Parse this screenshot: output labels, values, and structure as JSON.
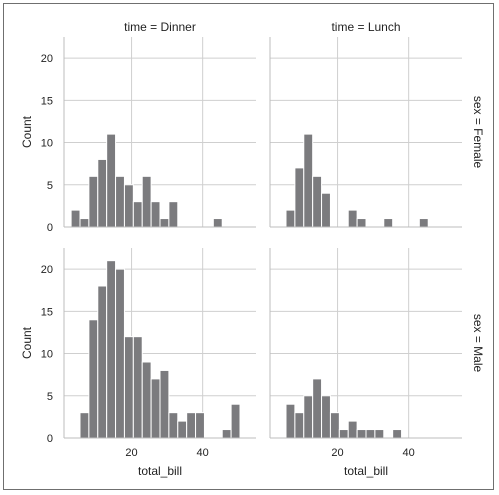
{
  "chart_data": {
    "type": "bar",
    "kind": "histogram facet grid",
    "x_variable": "total_bill",
    "y_variable": "Count",
    "xlabel": "total_bill",
    "ylabel": "Count",
    "x_ticks": [
      20,
      40
    ],
    "bin_width": 2.5,
    "bar_color": "#7b7b7e",
    "grid": true,
    "facets": [
      {
        "col_title": "time = Dinner",
        "row_title": "",
        "ylim": [
          0,
          22.5
        ],
        "y_ticks": [
          0,
          5,
          10,
          15,
          20
        ],
        "bins": [
          {
            "x0": 3.0,
            "x1": 5.5,
            "count": 2
          },
          {
            "x0": 5.5,
            "x1": 8.0,
            "count": 1
          },
          {
            "x0": 8.0,
            "x1": 10.5,
            "count": 6
          },
          {
            "x0": 10.5,
            "x1": 13.0,
            "count": 8
          },
          {
            "x0": 13.0,
            "x1": 15.5,
            "count": 11
          },
          {
            "x0": 15.5,
            "x1": 18.0,
            "count": 6
          },
          {
            "x0": 18.0,
            "x1": 20.5,
            "count": 5
          },
          {
            "x0": 20.5,
            "x1": 23.0,
            "count": 3
          },
          {
            "x0": 23.0,
            "x1": 25.5,
            "count": 6
          },
          {
            "x0": 25.5,
            "x1": 28.0,
            "count": 3
          },
          {
            "x0": 28.0,
            "x1": 30.5,
            "count": 1
          },
          {
            "x0": 30.5,
            "x1": 33.0,
            "count": 3
          },
          {
            "x0": 43.0,
            "x1": 45.5,
            "count": 1
          }
        ]
      },
      {
        "col_title": "time = Lunch",
        "row_title": "sex = Female",
        "ylim": [
          0,
          22.5
        ],
        "y_ticks": [
          0,
          5,
          10,
          15,
          20
        ],
        "bins": [
          {
            "x0": 5.5,
            "x1": 8.0,
            "count": 2
          },
          {
            "x0": 8.0,
            "x1": 10.5,
            "count": 7
          },
          {
            "x0": 10.5,
            "x1": 13.0,
            "count": 11
          },
          {
            "x0": 13.0,
            "x1": 15.5,
            "count": 6
          },
          {
            "x0": 15.5,
            "x1": 18.0,
            "count": 4
          },
          {
            "x0": 23.0,
            "x1": 25.5,
            "count": 2
          },
          {
            "x0": 25.5,
            "x1": 28.0,
            "count": 1
          },
          {
            "x0": 33.0,
            "x1": 35.5,
            "count": 1
          },
          {
            "x0": 43.0,
            "x1": 45.5,
            "count": 1
          }
        ]
      },
      {
        "col_title": "",
        "row_title": "",
        "ylim": [
          0,
          22.5
        ],
        "y_ticks": [
          0,
          5,
          10,
          15,
          20
        ],
        "bins": [
          {
            "x0": 5.5,
            "x1": 8.0,
            "count": 3
          },
          {
            "x0": 8.0,
            "x1": 10.5,
            "count": 14
          },
          {
            "x0": 10.5,
            "x1": 13.0,
            "count": 18
          },
          {
            "x0": 13.0,
            "x1": 15.5,
            "count": 21
          },
          {
            "x0": 15.5,
            "x1": 18.0,
            "count": 20
          },
          {
            "x0": 18.0,
            "x1": 20.5,
            "count": 12
          },
          {
            "x0": 20.5,
            "x1": 23.0,
            "count": 12
          },
          {
            "x0": 23.0,
            "x1": 25.5,
            "count": 9
          },
          {
            "x0": 25.5,
            "x1": 28.0,
            "count": 7
          },
          {
            "x0": 28.0,
            "x1": 30.5,
            "count": 8
          },
          {
            "x0": 30.5,
            "x1": 33.0,
            "count": 3
          },
          {
            "x0": 33.0,
            "x1": 35.5,
            "count": 2
          },
          {
            "x0": 35.5,
            "x1": 38.0,
            "count": 3
          },
          {
            "x0": 38.0,
            "x1": 40.5,
            "count": 3
          },
          {
            "x0": 45.5,
            "x1": 48.0,
            "count": 1
          },
          {
            "x0": 48.0,
            "x1": 50.5,
            "count": 4
          }
        ]
      },
      {
        "col_title": "",
        "row_title": "sex = Male",
        "ylim": [
          0,
          22.5
        ],
        "y_ticks": [
          0,
          5,
          10,
          15,
          20
        ],
        "bins": [
          {
            "x0": 5.5,
            "x1": 8.0,
            "count": 4
          },
          {
            "x0": 8.0,
            "x1": 10.5,
            "count": 3
          },
          {
            "x0": 10.5,
            "x1": 13.0,
            "count": 5
          },
          {
            "x0": 13.0,
            "x1": 15.5,
            "count": 7
          },
          {
            "x0": 15.5,
            "x1": 18.0,
            "count": 5
          },
          {
            "x0": 18.0,
            "x1": 20.5,
            "count": 3
          },
          {
            "x0": 20.5,
            "x1": 23.0,
            "count": 1
          },
          {
            "x0": 23.0,
            "x1": 25.5,
            "count": 2
          },
          {
            "x0": 25.5,
            "x1": 28.0,
            "count": 1
          },
          {
            "x0": 28.0,
            "x1": 30.5,
            "count": 1
          },
          {
            "x0": 30.5,
            "x1": 33.0,
            "count": 1
          },
          {
            "x0": 35.5,
            "x1": 38.0,
            "count": 1
          }
        ]
      }
    ]
  }
}
